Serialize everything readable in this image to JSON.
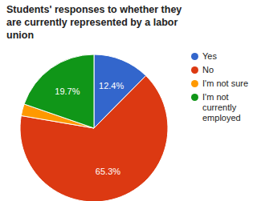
{
  "chart_data": {
    "type": "pie",
    "title": "Students' responses to whether they are currently represented by a labor union",
    "categories": [
      "Yes",
      "No",
      "I'm not sure",
      "I'm not currently employed"
    ],
    "values": [
      12.4,
      65.3,
      2.6,
      19.7
    ],
    "value_labels": [
      "12.4%",
      "65.3%",
      null,
      "19.7%"
    ],
    "colors": [
      "#3366cc",
      "#dc3912",
      "#ff9900",
      "#109618"
    ],
    "data_labels": true,
    "legend": "right"
  }
}
